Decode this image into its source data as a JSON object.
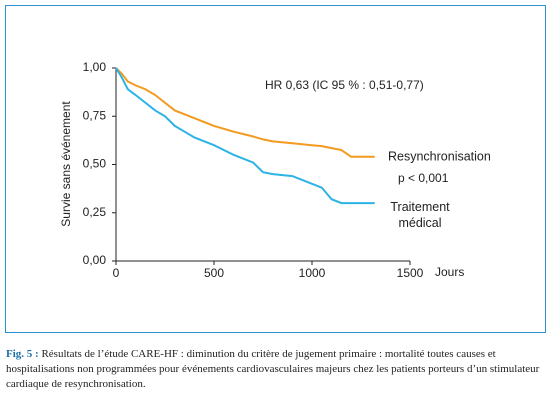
{
  "chart_data": {
    "type": "line",
    "annotations": [
      "HR 0,63 (IC 95 % : 0,51-0,77)",
      "p < 0,001"
    ],
    "x_label": "Jours",
    "y_label": "Survie sans événement",
    "x": [
      0,
      30,
      60,
      100,
      150,
      200,
      250,
      300,
      350,
      400,
      500,
      600,
      700,
      750,
      800,
      900,
      1000,
      1050,
      1100,
      1150,
      1200,
      1320
    ],
    "series": [
      {
        "name": "Resynchronisation",
        "color": "#f39a1e",
        "values": [
          1.0,
          0.97,
          0.93,
          0.91,
          0.89,
          0.86,
          0.82,
          0.78,
          0.76,
          0.74,
          0.7,
          0.67,
          0.645,
          0.63,
          0.62,
          0.61,
          0.6,
          0.595,
          0.585,
          0.575,
          0.54,
          0.54
        ]
      },
      {
        "name": "Traitement médical",
        "color": "#2db3e6",
        "values": [
          1.0,
          0.95,
          0.89,
          0.86,
          0.82,
          0.78,
          0.75,
          0.7,
          0.67,
          0.64,
          0.6,
          0.55,
          0.51,
          0.46,
          0.45,
          0.44,
          0.4,
          0.38,
          0.32,
          0.3,
          0.3,
          0.3
        ]
      }
    ],
    "xlim": [
      0,
      1500
    ],
    "xticks": [
      0,
      500,
      1000,
      1500
    ],
    "ylim": [
      0,
      1
    ],
    "yticks": [
      {
        "value": 0,
        "label": "0,00"
      },
      {
        "value": 0.25,
        "label": "0,25"
      },
      {
        "value": 0.5,
        "label": "0,50"
      },
      {
        "value": 0.75,
        "label": "0,75"
      },
      {
        "value": 1,
        "label": "1,00"
      }
    ]
  },
  "caption": {
    "label": "Fig. 5 :",
    "text": "Résultats de l’étude CARE-HF : diminution du critère de jugement primaire : mortalité toutes causes et hospitalisations non programmées pour événements cardiovasculaires majeurs chez les patients porteurs d’un stimulateur cardiaque de resynchronisation."
  }
}
